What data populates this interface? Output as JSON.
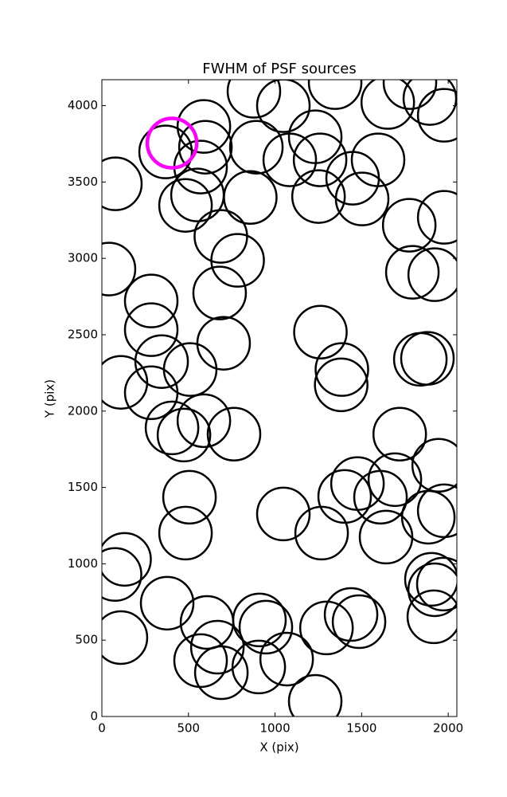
{
  "chart_data": {
    "type": "scatter",
    "title": "FWHM of PSF sources",
    "x_label": "X (pix)",
    "y_label": "Y (pix)",
    "xlim": [
      0,
      2050
    ],
    "ylim": [
      0,
      4170
    ],
    "xticks": [
      0,
      500,
      1000,
      1500,
      2000
    ],
    "yticks": [
      0,
      500,
      1000,
      1500,
      2000,
      2500,
      3000,
      3500,
      4000
    ],
    "grid": false,
    "series": [
      {
        "color": "#000000",
        "x": [
          78,
          368,
          598,
          589,
          570,
          552,
          483,
          878,
          1048,
          1347,
          892,
          1085,
          1232,
          1260,
          1251,
          1448,
          1503,
          1595,
          1651,
          1779,
          1894,
          1977,
          857,
          687,
          784,
          680,
          41,
          1775,
          1977,
          1793,
          1922,
          285,
          285,
          345,
          510,
          703,
          1262,
          1386,
          1382,
          110,
          285,
          405,
          474,
          589,
          763,
          1720,
          1839,
          1880,
          1945,
          1692,
          1476,
          1402,
          1609,
          1885,
          1977,
          1641,
          1269,
          1048,
          506,
          483,
          131,
          76,
          1903,
          1922,
          1972,
          1917,
          377,
          607,
          910,
          947,
          1439,
          1485,
          1297,
          110,
          667,
          570,
          690,
          906,
          1067,
          1232
        ],
        "values": [
          3488,
          3697,
          3728,
          3864,
          3598,
          3415,
          3347,
          4094,
          4000,
          4151,
          3728,
          3645,
          3796,
          3645,
          3405,
          3525,
          3389,
          3645,
          4021,
          4151,
          4047,
          3937,
          3399,
          3144,
          2987,
          2773,
          2930,
          3217,
          3269,
          2909,
          2893,
          2721,
          2533,
          2324,
          2272,
          2444,
          2517,
          2272,
          2172,
          2188,
          2120,
          1890,
          1843,
          1937,
          1849,
          1849,
          2339,
          2345,
          1645,
          1551,
          1525,
          1441,
          1436,
          1305,
          1347,
          1175,
          1201,
          1326,
          1436,
          1201,
          1029,
          930,
          898,
          830,
          867,
          653,
          742,
          616,
          632,
          585,
          668,
          621,
          580,
          517,
          454,
          366,
          287,
          324,
          376,
          99
        ]
      },
      {
        "color": "#ff00ff",
        "x": [
          405
        ],
        "values": [
          3755
        ]
      }
    ]
  }
}
